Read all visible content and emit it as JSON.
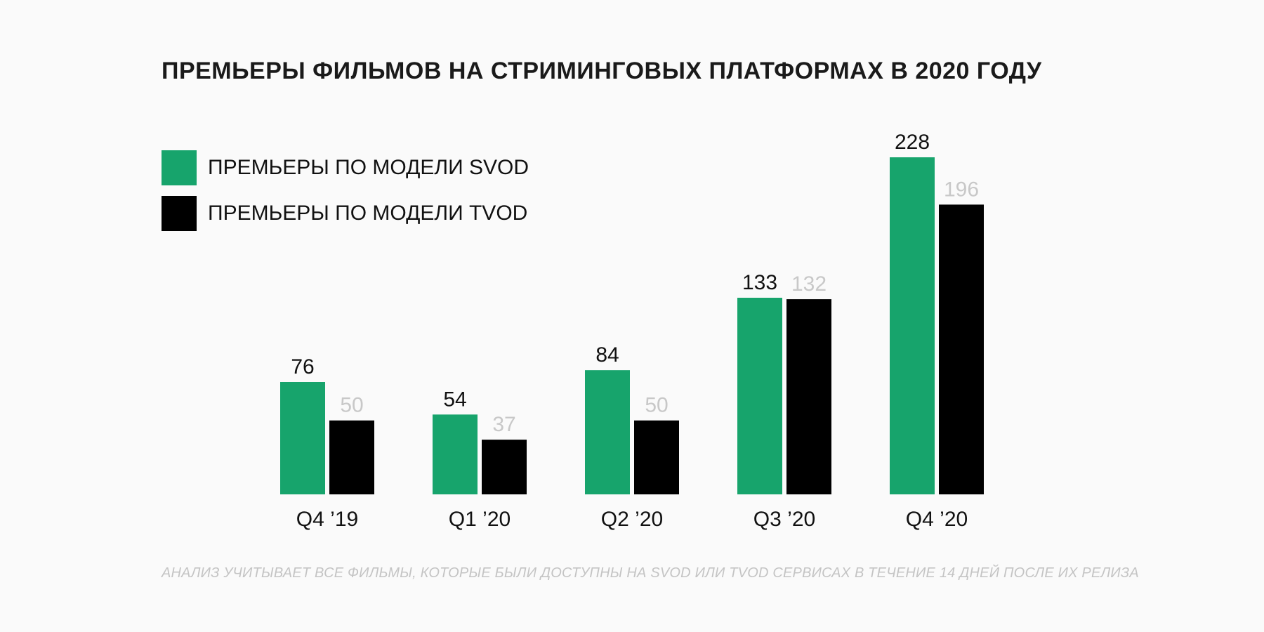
{
  "chart_data": {
    "type": "bar",
    "title": "ПРЕМЬЕРЫ ФИЛЬМОВ НА СТРИМИНГОВЫХ ПЛАТФОРМАХ В 2020 ГОДУ",
    "categories": [
      "Q4 ’19",
      "Q1 ’20",
      "Q2 ’20",
      "Q3 ’20",
      "Q4 ’20"
    ],
    "series": [
      {
        "name": "ПРЕМЬЕРЫ ПО МОДЕЛИ SVOD",
        "color": "#17a46c",
        "label_color": "#111111",
        "values": [
          76,
          54,
          84,
          133,
          228
        ]
      },
      {
        "name": "ПРЕМЬЕРЫ ПО МОДЕЛИ TVOD",
        "color": "#000000",
        "label_color": "#c8c8c8",
        "values": [
          50,
          37,
          50,
          132,
          196
        ]
      }
    ],
    "xlabel": "",
    "ylabel": "",
    "ylim": [
      0,
      228
    ],
    "grid": false,
    "legend": "top-left",
    "footnote": "АНАЛИЗ УЧИТЫВАЕТ ВСЕ ФИЛЬМЫ, КОТОРЫЕ БЫЛИ ДОСТУПНЫ НА SVOD ИЛИ TVOD СЕРВИСАХ В ТЕЧЕНИЕ 14 ДНЕЙ ПОСЛЕ ИХ РЕЛИЗА"
  }
}
